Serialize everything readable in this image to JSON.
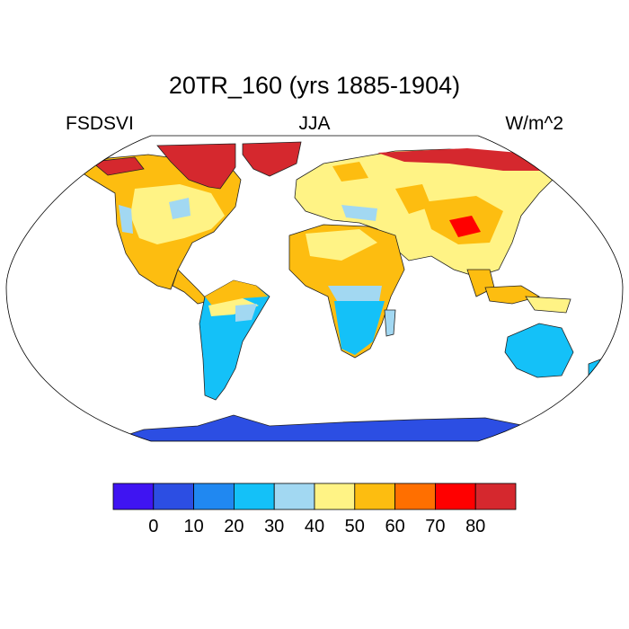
{
  "header": {
    "title": "20TR_160 (yrs 1885-1904)",
    "left_label": "FSDSVI",
    "center_label": "JJA",
    "right_label": "W/m^2"
  },
  "map": {
    "projection": "Robinson",
    "variable": "FSDSVI",
    "season": "JJA",
    "units": "W/m^2",
    "ocean_color": "#ffffff"
  },
  "legend": {
    "colors": [
      "#3f14f2",
      "#2c4ee3",
      "#2088f1",
      "#14c1f8",
      "#a2d8f2",
      "#fff385",
      "#fdbd10",
      "#ff6f00",
      "#ff0000",
      "#d5282e"
    ],
    "tick_labels": [
      "0",
      "10",
      "20",
      "30",
      "40",
      "50",
      "60",
      "70",
      "80"
    ]
  }
}
